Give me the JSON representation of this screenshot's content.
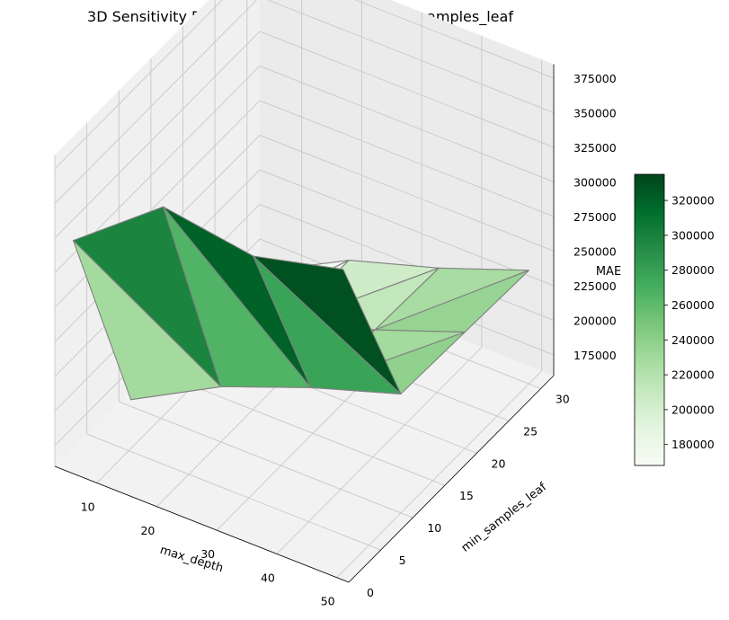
{
  "chart_data": {
    "type": "surface3d",
    "title": "3D Sensitivity Plot: MAE vs max_depth & min_samples_leaf",
    "xlabel": "max_depth",
    "ylabel": "min_samples_leaf",
    "zlabel": "MAE",
    "x_ticks": [
      "10",
      "20",
      "30",
      "40",
      "50"
    ],
    "y_ticks": [
      "0",
      "5",
      "10",
      "15",
      "20",
      "25",
      "30"
    ],
    "z_ticks": [
      "175000",
      "200000",
      "225000",
      "250000",
      "275000",
      "300000",
      "325000",
      "350000",
      "375000"
    ],
    "colorbar_ticks": [
      "180000",
      "200000",
      "220000",
      "240000",
      "260000",
      "280000",
      "300000",
      "320000"
    ],
    "colormap": "Greens",
    "edge_color": "#808080",
    "x": [
      5,
      20,
      35,
      50
    ],
    "y": [
      1,
      10,
      20,
      30
    ],
    "z": [
      [
        322000,
        372000,
        362000,
        378000
      ],
      [
        165000,
        200000,
        225000,
        246000
      ],
      [
        164000,
        198000,
        220000,
        244000
      ],
      [
        164000,
        198000,
        218000,
        242000
      ]
    ],
    "xlim": [
      3,
      52
    ],
    "ylim": [
      0,
      32
    ],
    "zlim": [
      160000,
      385000
    ],
    "clim": [
      168000,
      335000
    ]
  }
}
